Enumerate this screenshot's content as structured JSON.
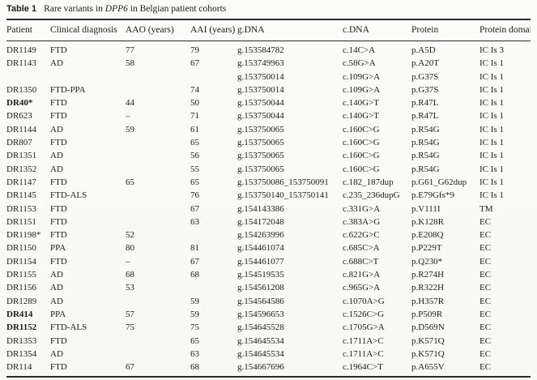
{
  "caption": {
    "label": "Table 1",
    "text_before_gene": "Rare variants in ",
    "gene": "DPP6",
    "text_after_gene": " in Belgian patient cohorts"
  },
  "table": {
    "columns": [
      "Patient",
      "Clinical diagnosis",
      "AAO (years)",
      "AAI (years)",
      "g.DNA",
      "c.DNA",
      "Protein",
      "Protein domain"
    ],
    "rows": [
      {
        "patient": "DR1149",
        "bold": false,
        "diagnosis": "FTD",
        "aao": "77",
        "aai": "79",
        "gdna": "g.153584782",
        "cdna": "c.14C>A",
        "protein": "p.A5D",
        "domain": "IC Is 3"
      },
      {
        "patient": "DR1143",
        "bold": false,
        "diagnosis": "AD",
        "aao": "58",
        "aai": "67",
        "gdna": "g.153749963",
        "cdna": "c.58G>A",
        "protein": "p.A20T",
        "domain": "IC Is 1"
      },
      {
        "patient": "",
        "bold": false,
        "diagnosis": "",
        "aao": "",
        "aai": "",
        "gdna": "g.153750014",
        "cdna": "c.109G>A",
        "protein": "p.G37S",
        "domain": "IC Is 1"
      },
      {
        "patient": "DR1350",
        "bold": false,
        "diagnosis": "FTD-PPA",
        "aao": "",
        "aai": "74",
        "gdna": "g.153750014",
        "cdna": "c.109G>A",
        "protein": "p.G37S",
        "domain": "IC Is 1"
      },
      {
        "patient": "DR40*",
        "bold": true,
        "diagnosis": "FTD",
        "aao": "44",
        "aai": "50",
        "gdna": "g.153750044",
        "cdna": "c.140G>T",
        "protein": "p.R47L",
        "domain": "IC Is 1"
      },
      {
        "patient": "DR623",
        "bold": false,
        "diagnosis": "FTD",
        "aao": "–",
        "aai": "71",
        "gdna": "g.153750044",
        "cdna": "c.140G>T",
        "protein": "p.R47L",
        "domain": "IC Is 1"
      },
      {
        "patient": "DR1144",
        "bold": false,
        "diagnosis": "AD",
        "aao": "59",
        "aai": "61",
        "gdna": "g.153750065",
        "cdna": "c.160C>G",
        "protein": "p.R54G",
        "domain": "IC Is 1"
      },
      {
        "patient": "DR807",
        "bold": false,
        "diagnosis": "FTD",
        "aao": "",
        "aai": "65",
        "gdna": "g.153750065",
        "cdna": "c.160C>G",
        "protein": "p.R54G",
        "domain": "IC Is 1"
      },
      {
        "patient": "DR1351",
        "bold": false,
        "diagnosis": "AD",
        "aao": "",
        "aai": "56",
        "gdna": "g.153750065",
        "cdna": "c.160C>G",
        "protein": "p.R54G",
        "domain": "IC Is 1"
      },
      {
        "patient": "DR1352",
        "bold": false,
        "diagnosis": "AD",
        "aao": "",
        "aai": "55",
        "gdna": "g.153750065",
        "cdna": "c.160C>G",
        "protein": "p.R54G",
        "domain": "IC Is 1"
      },
      {
        "patient": "DR1147",
        "bold": false,
        "diagnosis": "FTD",
        "aao": "65",
        "aai": "65",
        "gdna": "g.153750086_153750091",
        "cdna": "c.182_187dup",
        "protein": "p.G61_G62dup",
        "domain": "IC Is 1"
      },
      {
        "patient": "DR1145",
        "bold": false,
        "diagnosis": "FTD-ALS",
        "aao": "",
        "aai": "76",
        "gdna": "g.153750140_153750141",
        "cdna": "c.235_236dupG",
        "protein": "p.E79Gfs*9",
        "domain": "IC Is 1"
      },
      {
        "patient": "DR1153",
        "bold": false,
        "diagnosis": "FTD",
        "aao": "",
        "aai": "67",
        "gdna": "g.154143386",
        "cdna": "c.331G>A",
        "protein": "p.V111I",
        "domain": "TM"
      },
      {
        "patient": "DR1151",
        "bold": false,
        "diagnosis": "FTD",
        "aao": "",
        "aai": "63",
        "gdna": "g.154172048",
        "cdna": "c.383A>G",
        "protein": "p.K128R",
        "domain": "EC"
      },
      {
        "patient": "DR1198*",
        "bold": false,
        "diagnosis": "FTD",
        "aao": "52",
        "aai": "",
        "gdna": "g.154263996",
        "cdna": "c.622G>C",
        "protein": "p.E208Q",
        "domain": "EC"
      },
      {
        "patient": "DR1150",
        "bold": false,
        "diagnosis": "PPA",
        "aao": "80",
        "aai": "81",
        "gdna": "g.154461074",
        "cdna": "c.685C>A",
        "protein": "p.P229T",
        "domain": "EC"
      },
      {
        "patient": "DR1154",
        "bold": false,
        "diagnosis": "FTD",
        "aao": "–",
        "aai": "67",
        "gdna": "g.154461077",
        "cdna": "c.688C>T",
        "protein": "p.Q230*",
        "domain": "EC"
      },
      {
        "patient": "DR1155",
        "bold": false,
        "diagnosis": "AD",
        "aao": "68",
        "aai": "68",
        "gdna": "g.154519535",
        "cdna": "c.821G>A",
        "protein": "p.R274H",
        "domain": "EC"
      },
      {
        "patient": "DR1156",
        "bold": false,
        "diagnosis": "AD",
        "aao": "53",
        "aai": "",
        "gdna": "g.154561208",
        "cdna": "c.965G>A",
        "protein": "p.R322H",
        "domain": "EC"
      },
      {
        "patient": "DR1289",
        "bold": false,
        "diagnosis": "AD",
        "aao": "",
        "aai": "59",
        "gdna": "g.154564586",
        "cdna": "c.1070A>G",
        "protein": "p.H357R",
        "domain": "EC"
      },
      {
        "patient": "DR414",
        "bold": true,
        "diagnosis": "PPA",
        "aao": "57",
        "aai": "59",
        "gdna": "g.154596653",
        "cdna": "c.1526C>G",
        "protein": "p.P509R",
        "domain": "EC"
      },
      {
        "patient": "DR1152",
        "bold": true,
        "diagnosis": "FTD-ALS",
        "aao": "75",
        "aai": "75",
        "gdna": "g.154645528",
        "cdna": "c.1705G>A",
        "protein": "p.D569N",
        "domain": "EC"
      },
      {
        "patient": "DR1353",
        "bold": false,
        "diagnosis": "FTD",
        "aao": "",
        "aai": "65",
        "gdna": "g.154645534",
        "cdna": "c.1711A>C",
        "protein": "p.K571Q",
        "domain": "EC"
      },
      {
        "patient": "DR1354",
        "bold": false,
        "diagnosis": "AD",
        "aao": "",
        "aai": "63",
        "gdna": "g.154645534",
        "cdna": "c.1711A>C",
        "protein": "p.K571Q",
        "domain": "EC"
      },
      {
        "patient": "DR114",
        "bold": false,
        "diagnosis": "FTD",
        "aao": "67",
        "aai": "68",
        "gdna": "g.154667696",
        "cdna": "c.1964C>T",
        "protein": "p.A655V",
        "domain": "EC"
      }
    ]
  }
}
